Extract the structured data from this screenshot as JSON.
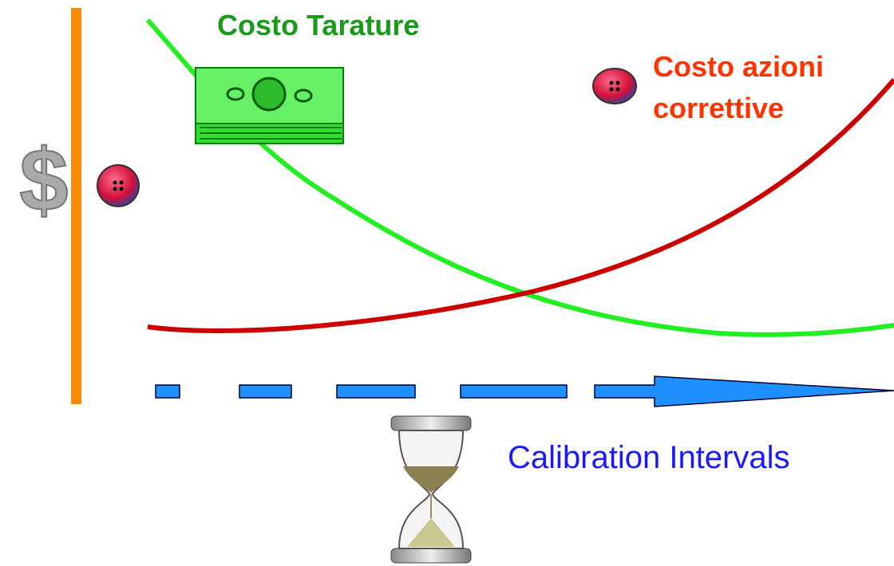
{
  "axis_icon": "$",
  "labels": {
    "calibration_cost": "Costo Tarature",
    "corrective_cost": [
      "Costo azioni",
      "correttive"
    ],
    "x_axis": "Calibration Intervals"
  }
}
